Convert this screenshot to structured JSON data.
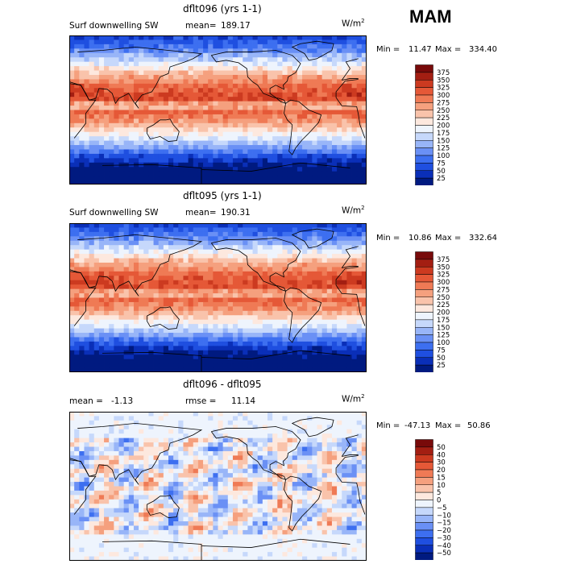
{
  "season": "MAM",
  "colors": {
    "abs": [
      "#001a80",
      "#0a2fb8",
      "#1f4fe0",
      "#3d6ff0",
      "#6a90f5",
      "#98b5f8",
      "#c6d8fb",
      "#eef4fd",
      "#fde8de",
      "#f9c3ab",
      "#f5a07e",
      "#ef7a55",
      "#e55837",
      "#cc3a20",
      "#a31e12",
      "#780a0a"
    ],
    "diff": [
      "#001a80",
      "#0a2fb8",
      "#1f4fe0",
      "#3d6ff0",
      "#6a90f5",
      "#98b5f8",
      "#c6d8fb",
      "#eef4fd",
      "#fde8de",
      "#f9c3ab",
      "#f5a07e",
      "#ef7a55",
      "#e55837",
      "#cc3a20",
      "#a31e12",
      "#780a0a"
    ]
  },
  "chart_data": [
    {
      "type": "heatmap",
      "title": "dflt096 (yrs 1-1)",
      "variable": "Surf downwelling SW",
      "mean_label": "mean=",
      "mean": "189.17",
      "units_base": "W/m",
      "units_exp": "2",
      "min_label": "Min =",
      "min": "11.47",
      "max_label": "Max =",
      "max": "334.40",
      "levels": [
        "375",
        "350",
        "325",
        "300",
        "275",
        "250",
        "225",
        "200",
        "175",
        "150",
        "125",
        "100",
        "75",
        "50",
        "25"
      ],
      "pattern": "abs",
      "seed": 7
    },
    {
      "type": "heatmap",
      "title": "dflt095 (yrs 1-1)",
      "variable": "Surf downwelling SW",
      "mean_label": "mean=",
      "mean": "190.31",
      "units_base": "W/m",
      "units_exp": "2",
      "min_label": "Min =",
      "min": "10.86",
      "max_label": "Max =",
      "max": "332.64",
      "levels": [
        "375",
        "350",
        "325",
        "300",
        "275",
        "250",
        "225",
        "200",
        "175",
        "150",
        "125",
        "100",
        "75",
        "50",
        "25"
      ],
      "pattern": "abs",
      "seed": 11
    },
    {
      "type": "heatmap",
      "title": "dflt096 - dflt095",
      "mean_label": "mean =",
      "mean": "-1.13",
      "rmse_label": "rmse =",
      "rmse": "11.14",
      "units_base": "W/m",
      "units_exp": "2",
      "min_label": "Min =",
      "min": "-47.13",
      "max_label": "Max =",
      "max": "50.86",
      "levels": [
        "50",
        "40",
        "30",
        "20",
        "15",
        "10",
        "5",
        "0",
        "−5",
        "−10",
        "−15",
        "−20",
        "−30",
        "−40",
        "−50"
      ],
      "pattern": "diff",
      "seed": 3
    }
  ]
}
